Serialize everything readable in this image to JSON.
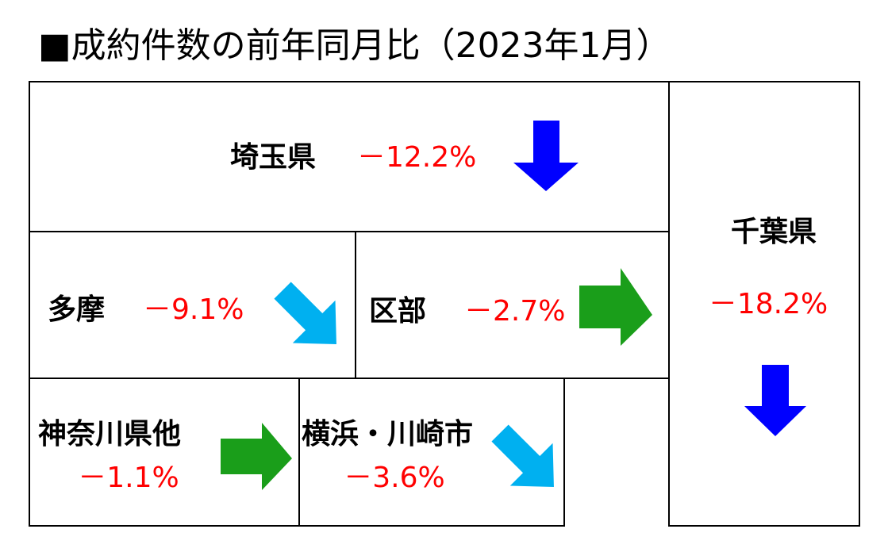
{
  "title": "■成約件数の前年同月比（2023年1月）",
  "regions": [
    {
      "name": "埼玉県",
      "change": "－12.2%"
    },
    {
      "name": "千葉県",
      "change": "－18.2%"
    },
    {
      "name": "多摩",
      "change": "－9.1%"
    },
    {
      "name": "区部",
      "change": "－2.7%"
    },
    {
      "name": "神奈川県他",
      "change": "－1.1%"
    },
    {
      "name": "横浜・川崎市",
      "change": "－3.6%"
    }
  ]
}
